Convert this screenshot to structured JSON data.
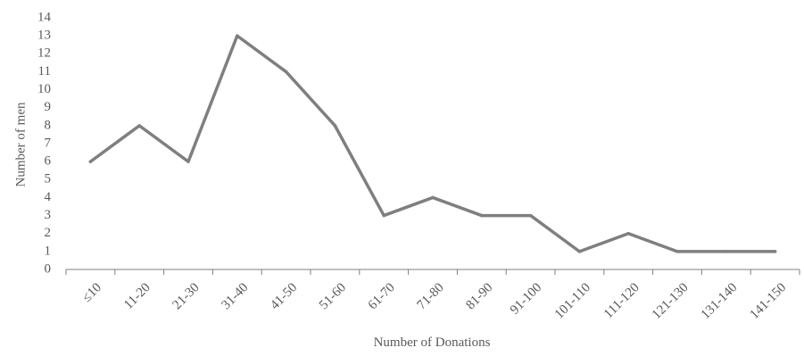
{
  "chart_data": {
    "type": "line",
    "title": "",
    "xlabel": "Number of Donations",
    "ylabel": "Number of men",
    "categories": [
      "≤10",
      "11-20",
      "21-30",
      "31-40",
      "41-50",
      "51-60",
      "61-70",
      "71-80",
      "81-90",
      "91-100",
      "101-110",
      "111-120",
      "121-130",
      "131-140",
      "141-150"
    ],
    "series": [
      {
        "values": [
          6,
          8,
          6,
          13,
          11,
          8,
          3,
          4,
          3,
          3,
          1,
          2,
          1,
          1,
          1
        ],
        "color": "#7f7f7f"
      }
    ],
    "ylim": [
      0,
      14
    ],
    "yticks": [
      "0",
      "1",
      "2",
      "3",
      "4",
      "5",
      "6",
      "7",
      "8",
      "9",
      "10",
      "11",
      "12",
      "13",
      "14"
    ],
    "grid": false,
    "legend": "none"
  },
  "colors": {
    "line": "#7f7f7f",
    "text": "#595959",
    "axis": "#7f7f7f"
  }
}
